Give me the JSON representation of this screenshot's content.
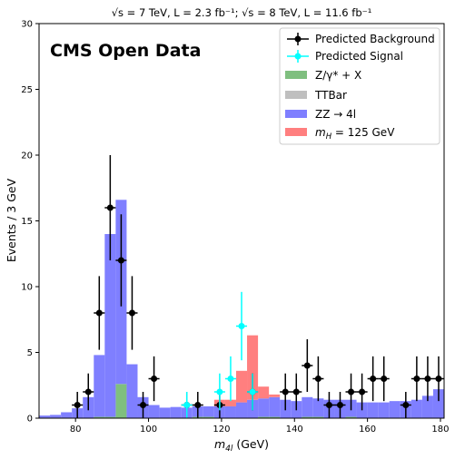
{
  "chart_data": {
    "type": "bar",
    "title": "√s = 7 TeV, L = 2.3 fb⁻¹; √s = 8 TeV, L = 11.6 fb⁻¹",
    "annotation": "CMS Open Data",
    "xlabel": "m_{4l} (GeV)",
    "xlabel_main": "m",
    "xlabel_sub": "4l",
    "xlabel_rest": " (GeV)",
    "ylabel": "Events / 3 GeV",
    "xlim": [
      70,
      181
    ],
    "ylim": [
      0,
      30
    ],
    "xticks": [
      80,
      100,
      120,
      140,
      160,
      180
    ],
    "yticks": [
      0,
      5,
      10,
      15,
      20,
      25,
      30
    ],
    "grid": false,
    "legend_position": "top-right",
    "bin_width": 3,
    "bin_edges_start": 70,
    "stack_order": [
      "zgamma",
      "ttbar",
      "zz",
      "higgs"
    ],
    "stacked_series": [
      {
        "key": "zgamma",
        "name": "Z/γ* + X",
        "color": "#7fbf7f",
        "values": [
          0,
          0,
          0,
          0,
          0,
          0.1,
          0.1,
          2.6,
          0,
          0,
          0,
          0,
          0,
          0,
          0.1,
          0.1,
          0,
          0,
          0,
          0,
          0.1,
          0.1,
          0,
          0,
          0.1,
          0.1,
          0,
          0,
          0.1,
          0,
          0,
          0,
          0,
          0,
          0,
          0,
          0,
          0
        ]
      },
      {
        "key": "ttbar",
        "name": "TTBar",
        "color": "#bfbfbf",
        "values": [
          0,
          0,
          0,
          0,
          0,
          0,
          0,
          0,
          0,
          0,
          0,
          0,
          0,
          0,
          0,
          0,
          0,
          0,
          0,
          0,
          0,
          0,
          0,
          0,
          0,
          0,
          0,
          0,
          0,
          0,
          0,
          0,
          0,
          0,
          0,
          0,
          0,
          0
        ]
      },
      {
        "key": "zz",
        "name": "ZZ → 4l",
        "color": "#7f7fff",
        "values": [
          0.2,
          0.25,
          0.45,
          0.75,
          1.6,
          4.7,
          13.9,
          14.0,
          4.1,
          1.6,
          1.0,
          0.8,
          0.85,
          0.8,
          0.8,
          0.8,
          0.9,
          0.9,
          1.2,
          1.4,
          1.4,
          1.5,
          1.4,
          1.3,
          1.5,
          1.4,
          1.4,
          1.4,
          1.3,
          1.2,
          1.2,
          1.2,
          1.3,
          1.3,
          1.4,
          1.7,
          2.2,
          2.9
        ]
      },
      {
        "key": "higgs",
        "name": "m_H = 125 GeV",
        "name_main": "m",
        "name_sub": "H",
        "name_rest": " = 125 GeV",
        "color": "#ff7f7f",
        "values": [
          0,
          0,
          0,
          0,
          0,
          0,
          0,
          0,
          0,
          0,
          0,
          0,
          0,
          0,
          0,
          0,
          0.5,
          0.5,
          2.4,
          4.9,
          0.9,
          0.2,
          0,
          0,
          0,
          0,
          0,
          0,
          0,
          0,
          0,
          0,
          0,
          0,
          0,
          0,
          0,
          0
        ]
      }
    ],
    "points_background": {
      "name": "Predicted Background",
      "color": "#000000",
      "x": [
        80.5,
        83.5,
        86.5,
        89.5,
        92.5,
        95.5,
        98.5,
        101.5,
        110.5,
        113.5,
        119.5,
        128.5,
        137.5,
        140.5,
        143.5,
        146.5,
        149.5,
        152.5,
        155.5,
        158.5,
        161.5,
        164.5,
        170.5,
        173.5,
        176.5,
        179.5
      ],
      "y": [
        1,
        2,
        8,
        16,
        12,
        8,
        1,
        3,
        1,
        1,
        1,
        2,
        2,
        2,
        4,
        3,
        1,
        1,
        2,
        2,
        3,
        3,
        1,
        3,
        3,
        3
      ],
      "err": [
        1,
        1.4,
        2.8,
        4,
        3.5,
        2.8,
        1,
        1.7,
        1,
        1,
        1,
        1.4,
        1.4,
        1.4,
        2,
        1.7,
        1,
        1,
        1.4,
        1.4,
        1.7,
        1.7,
        1,
        1.7,
        1.7,
        1.7
      ]
    },
    "points_signal": {
      "name": "Predicted Signal",
      "color": "#00ffff",
      "x": [
        110.5,
        119.5,
        122.5,
        125.5,
        128.5
      ],
      "y": [
        1,
        2,
        3,
        7,
        2
      ],
      "err": [
        1,
        1.4,
        1.7,
        2.6,
        1.4
      ]
    }
  }
}
